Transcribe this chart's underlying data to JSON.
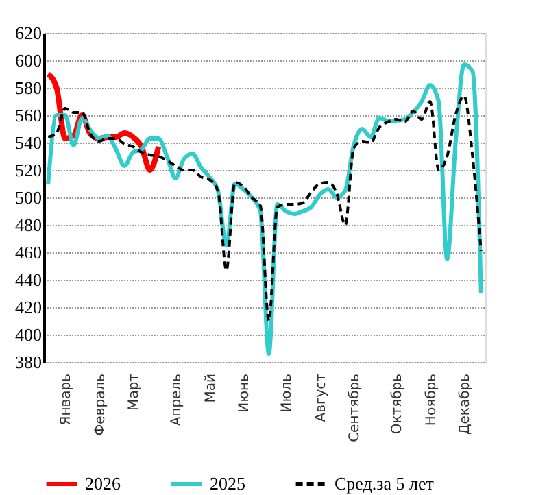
{
  "chart_data": {
    "type": "line",
    "ylim": [
      380,
      620
    ],
    "categories": [
      null,
      null,
      "Январь",
      null,
      null,
      null,
      "Февраль",
      null,
      null,
      null,
      "Март",
      null,
      null,
      null,
      null,
      "Апрель",
      null,
      null,
      null,
      "Май",
      null,
      null,
      null,
      "Июнь",
      null,
      null,
      null,
      null,
      "Июль",
      null,
      null,
      null,
      "Август",
      null,
      null,
      null,
      "Сентябрь",
      null,
      null,
      null,
      null,
      "Октябрь",
      null,
      null,
      null,
      "Ноябрь",
      null,
      null,
      null,
      "Декабрь",
      null,
      null
    ],
    "yticks": [
      380,
      400,
      420,
      440,
      460,
      480,
      500,
      520,
      540,
      560,
      580,
      600,
      620
    ],
    "grid": "y",
    "legend": "bottom",
    "marker": "none",
    "series": [
      {
        "name": "2026",
        "color": "#ff0000",
        "line_style": "solid",
        "values": [
          590,
          580,
          543,
          545,
          560,
          546,
          543,
          544,
          544,
          547,
          544,
          537,
          520,
          537,
          null,
          null,
          null,
          null,
          null,
          null,
          null,
          null,
          null,
          null,
          null,
          null,
          null,
          null,
          null,
          null,
          null,
          null,
          null,
          null,
          null,
          null,
          null,
          null,
          null,
          null,
          null,
          null,
          null,
          null,
          null,
          null,
          null,
          null,
          null,
          null,
          null,
          null
        ]
      },
      {
        "name": "2025",
        "color": "#33cccc",
        "line_style": "solid",
        "values": [
          510,
          560,
          560,
          538,
          558,
          549,
          543,
          545,
          535,
          523,
          533,
          535,
          543,
          543,
          530,
          514,
          528,
          532,
          522,
          515,
          505,
          465,
          510,
          506,
          500,
          490,
          386,
          495,
          490,
          488,
          490,
          493,
          502,
          506,
          500,
          505,
          538,
          550,
          544,
          558,
          556,
          556,
          557,
          562,
          570,
          582,
          570,
          455,
          540,
          597,
          592,
          430
        ]
      },
      {
        "name": "Сред.за 5 лет",
        "color": "#000000",
        "line_style": "dashed",
        "values": [
          544,
          547,
          565,
          562,
          562,
          546,
          541,
          543,
          543,
          539,
          537,
          533,
          531,
          530,
          527,
          523,
          520,
          520,
          515,
          513,
          505,
          447,
          511,
          508,
          500,
          494,
          410,
          493,
          495,
          495,
          496,
          504,
          510,
          511,
          503,
          480,
          536,
          541,
          540,
          551,
          555,
          557,
          555,
          563,
          557,
          570,
          520,
          530,
          560,
          574,
          530,
          461
        ]
      }
    ]
  }
}
